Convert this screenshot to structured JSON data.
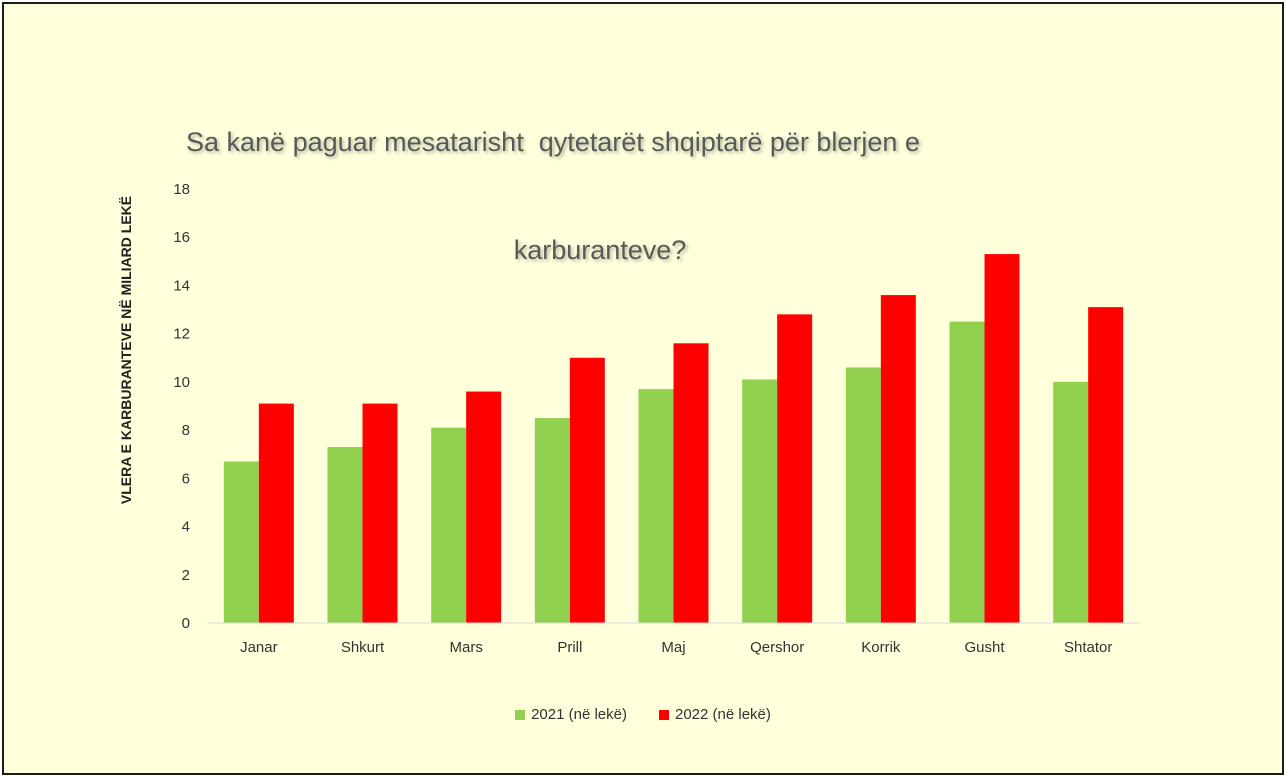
{
  "chart_data": {
    "type": "bar",
    "title_line1": "Sa kanë paguar mesatarisht  qytetarët shqiptarë për blerjen e",
    "title_line2": "karburanteve?",
    "xlabel": "",
    "ylabel": "VLERA E KARBURANTEVE NË MILIARD LEKË",
    "ylim": [
      0,
      18
    ],
    "yticks": [
      0,
      2,
      4,
      6,
      8,
      10,
      12,
      14,
      16,
      18
    ],
    "categories": [
      "Janar",
      "Shkurt",
      "Mars",
      "Prill",
      "Maj",
      "Qershor",
      "Korrik",
      "Gusht",
      "Shtator"
    ],
    "series": [
      {
        "name": "2021 (në lekë)",
        "color": "#92d050",
        "values": [
          6.7,
          7.3,
          8.1,
          8.5,
          9.7,
          10.1,
          10.6,
          12.5,
          10.0
        ]
      },
      {
        "name": "2022 (në lekë)",
        "color": "#ff0000",
        "values": [
          9.1,
          9.1,
          9.6,
          11.0,
          11.6,
          12.8,
          13.6,
          15.3,
          13.1
        ]
      }
    ],
    "grid": false,
    "legend_position": "bottom"
  }
}
